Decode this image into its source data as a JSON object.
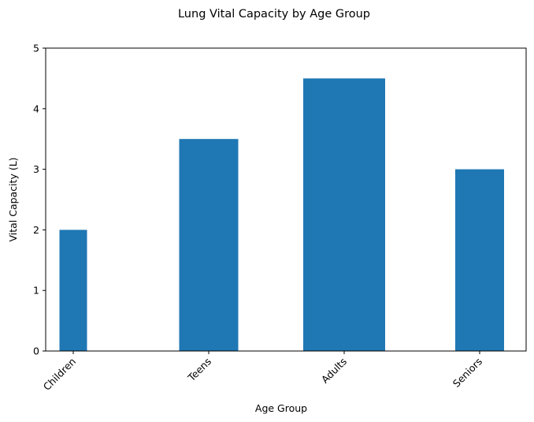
{
  "chart_data": {
    "type": "bar",
    "title": "Lung Vital Capacity by Age Group",
    "xlabel": "Age Group",
    "ylabel": "Vital Capacity (L)",
    "categories": [
      "Children",
      "Teens",
      "Adults",
      "Seniors"
    ],
    "values": [
      2,
      3.5,
      4.5,
      3
    ],
    "ylim": [
      0,
      5
    ],
    "yticks": [
      "0",
      "1",
      "2",
      "3",
      "4",
      "5"
    ],
    "grid": false,
    "bar_color": "#1f77b4"
  }
}
